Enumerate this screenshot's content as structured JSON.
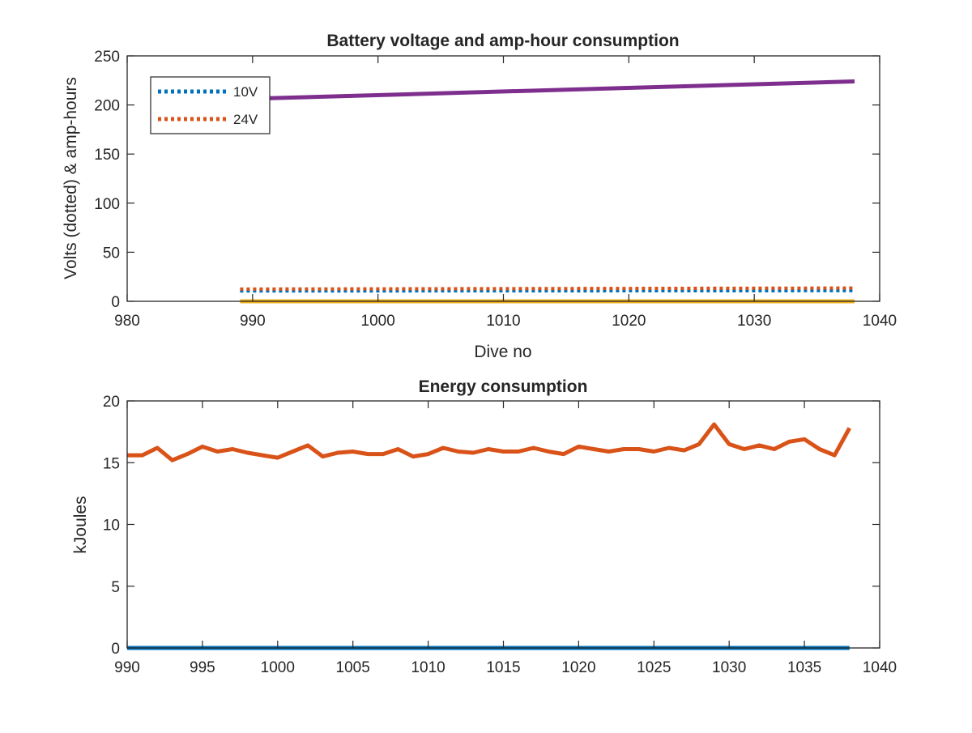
{
  "chart_data": [
    {
      "type": "line",
      "title": "Battery voltage and amp-hour consumption",
      "xlabel": "Dive no",
      "ylabel": "Volts (dotted) & amp-hours",
      "xlim": [
        980,
        1040
      ],
      "ylim": [
        0,
        250
      ],
      "xticks": [
        980,
        990,
        1000,
        1010,
        1020,
        1030,
        1040
      ],
      "yticks": [
        0,
        50,
        100,
        150,
        200,
        250
      ],
      "legend_position": "top-left",
      "series": [
        {
          "name": "10V",
          "style": "dotted",
          "color": "#0072BD",
          "x": [
            989,
            1038
          ],
          "y": [
            10.5,
            10.8
          ]
        },
        {
          "name": "24V",
          "style": "dotted",
          "color": "#D95319",
          "x": [
            989,
            1038
          ],
          "y": [
            12.5,
            13.5
          ]
        },
        {
          "style": "solid",
          "color": "#EDB120",
          "x": [
            989,
            1038
          ],
          "y": [
            0,
            0
          ]
        },
        {
          "style": "solid",
          "color": "#7E2F8E",
          "x": [
            989,
            1038
          ],
          "y": [
            206,
            224
          ]
        }
      ]
    },
    {
      "type": "line",
      "title": "Energy consumption",
      "xlabel": "",
      "ylabel": "kJoules",
      "xlim": [
        990,
        1040
      ],
      "ylim": [
        0,
        20
      ],
      "xticks": [
        990,
        995,
        1000,
        1005,
        1010,
        1015,
        1020,
        1025,
        1030,
        1035,
        1040
      ],
      "yticks": [
        0,
        5,
        10,
        15,
        20
      ],
      "series": [
        {
          "style": "solid",
          "color": "#0072BD",
          "x": [
            990,
            1038
          ],
          "y": [
            0,
            0
          ]
        },
        {
          "style": "solid",
          "color": "#D95319",
          "x": [
            990,
            991,
            992,
            993,
            994,
            995,
            996,
            997,
            998,
            999,
            1000,
            1001,
            1002,
            1003,
            1004,
            1005,
            1006,
            1007,
            1008,
            1009,
            1010,
            1011,
            1012,
            1013,
            1014,
            1015,
            1016,
            1017,
            1018,
            1019,
            1020,
            1021,
            1022,
            1023,
            1024,
            1025,
            1026,
            1027,
            1028,
            1029,
            1030,
            1031,
            1032,
            1033,
            1034,
            1035,
            1036,
            1037,
            1038
          ],
          "y": [
            15.6,
            15.6,
            16.2,
            15.2,
            15.7,
            16.3,
            15.9,
            16.1,
            15.8,
            15.6,
            15.4,
            15.9,
            16.4,
            15.5,
            15.8,
            15.9,
            15.7,
            15.7,
            16.1,
            15.5,
            15.7,
            16.2,
            15.9,
            15.8,
            16.1,
            15.9,
            15.9,
            16.2,
            15.9,
            15.7,
            16.3,
            16.1,
            15.9,
            16.1,
            16.1,
            15.9,
            16.2,
            16.0,
            16.5,
            18.1,
            16.5,
            16.1,
            16.4,
            16.1,
            16.7,
            16.9,
            16.1,
            15.6,
            17.8
          ]
        }
      ]
    }
  ]
}
